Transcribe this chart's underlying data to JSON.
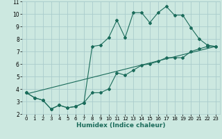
{
  "xlabel": "Humidex (Indice chaleur)",
  "bg_color": "#cce8e0",
  "grid_color": "#aacccc",
  "line_color": "#1a6b5a",
  "xlim": [
    -0.5,
    23.5
  ],
  "ylim": [
    2,
    11
  ],
  "yticks": [
    2,
    3,
    4,
    5,
    6,
    7,
    8,
    9,
    10,
    11
  ],
  "xticks": [
    0,
    1,
    2,
    3,
    4,
    5,
    6,
    7,
    8,
    9,
    10,
    11,
    12,
    13,
    14,
    15,
    16,
    17,
    18,
    19,
    20,
    21,
    22,
    23
  ],
  "line_top": {
    "x": [
      0,
      1,
      2,
      3,
      4,
      5,
      6,
      7,
      8,
      9,
      10,
      11,
      12,
      13,
      14,
      15,
      16,
      17,
      18,
      19,
      20,
      21,
      22,
      23
    ],
    "y": [
      3.7,
      3.3,
      3.1,
      2.4,
      2.7,
      2.5,
      2.6,
      2.9,
      7.4,
      7.5,
      8.1,
      9.5,
      8.1,
      10.1,
      10.1,
      9.3,
      10.1,
      10.6,
      9.9,
      9.9,
      8.9,
      8.0,
      7.5,
      7.4
    ]
  },
  "line_mid": {
    "x": [
      0,
      23
    ],
    "y": [
      3.6,
      7.4
    ]
  },
  "line_bot": {
    "x": [
      0,
      1,
      2,
      3,
      4,
      5,
      6,
      7,
      8,
      9,
      10,
      11,
      12,
      13,
      14,
      15,
      16,
      17,
      18,
      19,
      20,
      21,
      22,
      23
    ],
    "y": [
      3.7,
      3.3,
      3.1,
      2.4,
      2.7,
      2.5,
      2.6,
      2.9,
      3.7,
      3.7,
      4.0,
      5.3,
      5.1,
      5.5,
      5.9,
      6.0,
      6.2,
      6.5,
      6.5,
      6.5,
      7.0,
      7.2,
      7.4,
      7.4
    ]
  }
}
